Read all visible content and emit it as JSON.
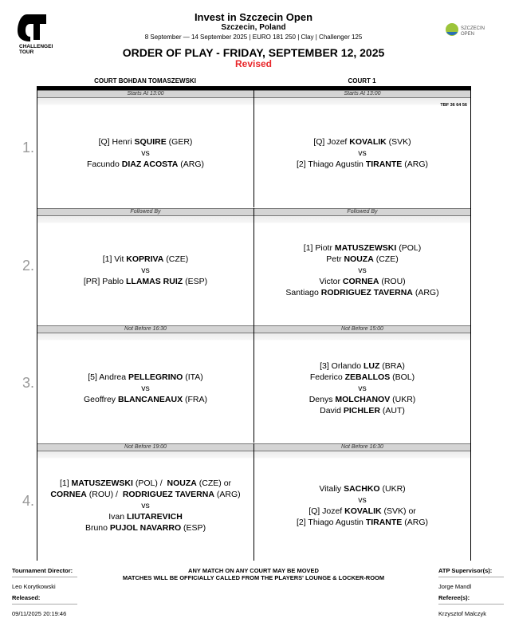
{
  "header": {
    "title": "Invest in Szczecin Open",
    "location": "Szczecin, Poland",
    "info": "8 September — 14 September 2025 | EURO 181 250 | Clay | Challenger 125",
    "order_of_play": "ORDER OF PLAY - FRIDAY, SEPTEMBER 12, 2025",
    "status": "Revised",
    "status_color": "#e8262a",
    "logo_left": "ATP CHALLENGER TOUR",
    "logo_right": "SZCZECIN OPEN"
  },
  "courts": [
    "COURT BOHDAN TOMASZEWSKI",
    "COURT 1"
  ],
  "rows": [
    {
      "num": "1.",
      "cells": [
        {
          "slot": "Starts At 13:00",
          "lines": [
            [
              {
                "t": "[Q] Henri "
              },
              {
                "t": "SQUIRE",
                "b": 1
              },
              {
                "t": " (GER)"
              }
            ],
            [
              {
                "t": "vs"
              }
            ],
            [
              {
                "t": "Facundo "
              },
              {
                "t": "DIAZ ACOSTA",
                "b": 1
              },
              {
                "t": " (ARG)"
              }
            ]
          ]
        },
        {
          "slot": "Starts At 13:00",
          "note": "TBF 36 64 56",
          "lines": [
            [
              {
                "t": "[Q] Jozef "
              },
              {
                "t": "KOVALIK",
                "b": 1
              },
              {
                "t": " (SVK)"
              }
            ],
            [
              {
                "t": "vs"
              }
            ],
            [
              {
                "t": "[2] Thiago Agustin "
              },
              {
                "t": "TIRANTE",
                "b": 1
              },
              {
                "t": " (ARG)"
              }
            ]
          ]
        }
      ]
    },
    {
      "num": "2.",
      "cells": [
        {
          "slot": "Followed By",
          "lines": [
            [
              {
                "t": "[1] Vit "
              },
              {
                "t": "KOPRIVA",
                "b": 1
              },
              {
                "t": " (CZE)"
              }
            ],
            [
              {
                "t": "vs"
              }
            ],
            [
              {
                "t": "[PR] Pablo "
              },
              {
                "t": "LLAMAS RUIZ",
                "b": 1
              },
              {
                "t": " (ESP)"
              }
            ]
          ]
        },
        {
          "slot": "Followed By",
          "lines": [
            [
              {
                "t": "[1] Piotr "
              },
              {
                "t": "MATUSZEWSKI",
                "b": 1
              },
              {
                "t": " (POL)"
              }
            ],
            [
              {
                "t": "Petr "
              },
              {
                "t": "NOUZA",
                "b": 1
              },
              {
                "t": " (CZE)"
              }
            ],
            [
              {
                "t": "vs"
              }
            ],
            [
              {
                "t": "Victor "
              },
              {
                "t": "CORNEA",
                "b": 1
              },
              {
                "t": " (ROU)"
              }
            ],
            [
              {
                "t": "Santiago "
              },
              {
                "t": "RODRIGUEZ TAVERNA",
                "b": 1
              },
              {
                "t": " (ARG)"
              }
            ]
          ]
        }
      ]
    },
    {
      "num": "3.",
      "cells": [
        {
          "slot": "Not Before 16:30",
          "lines": [
            [
              {
                "t": "[5] Andrea "
              },
              {
                "t": "PELLEGRINO",
                "b": 1
              },
              {
                "t": " (ITA)"
              }
            ],
            [
              {
                "t": "vs"
              }
            ],
            [
              {
                "t": "Geoffrey "
              },
              {
                "t": "BLANCANEAUX",
                "b": 1
              },
              {
                "t": " (FRA)"
              }
            ]
          ]
        },
        {
          "slot": "Not Before 15:00",
          "lines": [
            [
              {
                "t": "[3] Orlando "
              },
              {
                "t": "LUZ",
                "b": 1
              },
              {
                "t": " (BRA)"
              }
            ],
            [
              {
                "t": "Federico "
              },
              {
                "t": "ZEBALLOS",
                "b": 1
              },
              {
                "t": " (BOL)"
              }
            ],
            [
              {
                "t": "vs"
              }
            ],
            [
              {
                "t": "Denys "
              },
              {
                "t": "MOLCHANOV",
                "b": 1
              },
              {
                "t": " (UKR)"
              }
            ],
            [
              {
                "t": "David "
              },
              {
                "t": "PICHLER",
                "b": 1
              },
              {
                "t": " (AUT)"
              }
            ]
          ]
        }
      ]
    },
    {
      "num": "4.",
      "cells": [
        {
          "slot": "Not Before 19:00",
          "lines": [
            [
              {
                "t": "[1] "
              },
              {
                "t": "MATUSZEWSKI",
                "b": 1
              },
              {
                "t": " (POL) /  "
              },
              {
                "t": "NOUZA",
                "b": 1
              },
              {
                "t": " (CZE) or"
              }
            ],
            [
              {
                "t": "CORNEA",
                "b": 1
              },
              {
                "t": " (ROU) /  "
              },
              {
                "t": "RODRIGUEZ TAVERNA",
                "b": 1
              },
              {
                "t": " (ARG)"
              }
            ],
            [
              {
                "t": "vs"
              }
            ],
            [
              {
                "t": "Ivan "
              },
              {
                "t": "LIUTAREVICH",
                "b": 1
              }
            ],
            [
              {
                "t": "Bruno "
              },
              {
                "t": "PUJOL NAVARRO",
                "b": 1
              },
              {
                "t": " (ESP)"
              }
            ]
          ]
        },
        {
          "slot": "Not Before 16:30",
          "lines": [
            [
              {
                "t": "Vitaliy "
              },
              {
                "t": "SACHKO",
                "b": 1
              },
              {
                "t": " (UKR)"
              }
            ],
            [
              {
                "t": "vs"
              }
            ],
            [
              {
                "t": "[Q] Jozef "
              },
              {
                "t": "KOVALIK",
                "b": 1
              },
              {
                "t": " (SVK) or"
              }
            ],
            [
              {
                "t": "[2] Thiago Agustin "
              },
              {
                "t": "TIRANTE",
                "b": 1
              },
              {
                "t": " (ARG)"
              }
            ]
          ]
        }
      ]
    }
  ],
  "footer": {
    "director_label": "Tournament Director:",
    "director": "Leo Korytkowski",
    "released_label": "Released:",
    "released": "09/11/2025 20:19:46",
    "notice1": "ANY MATCH ON ANY COURT MAY BE MOVED",
    "notice2": "MATCHES WILL BE OFFICIALLY CALLED FROM THE PLAYERS' LOUNGE & LOCKER-ROOM",
    "supervisor_label": "ATP Supervisor(s):",
    "supervisor": "Jorge Mandl",
    "referee_label": "Referee(s):",
    "referee": "Krzysztof Malczyk"
  }
}
